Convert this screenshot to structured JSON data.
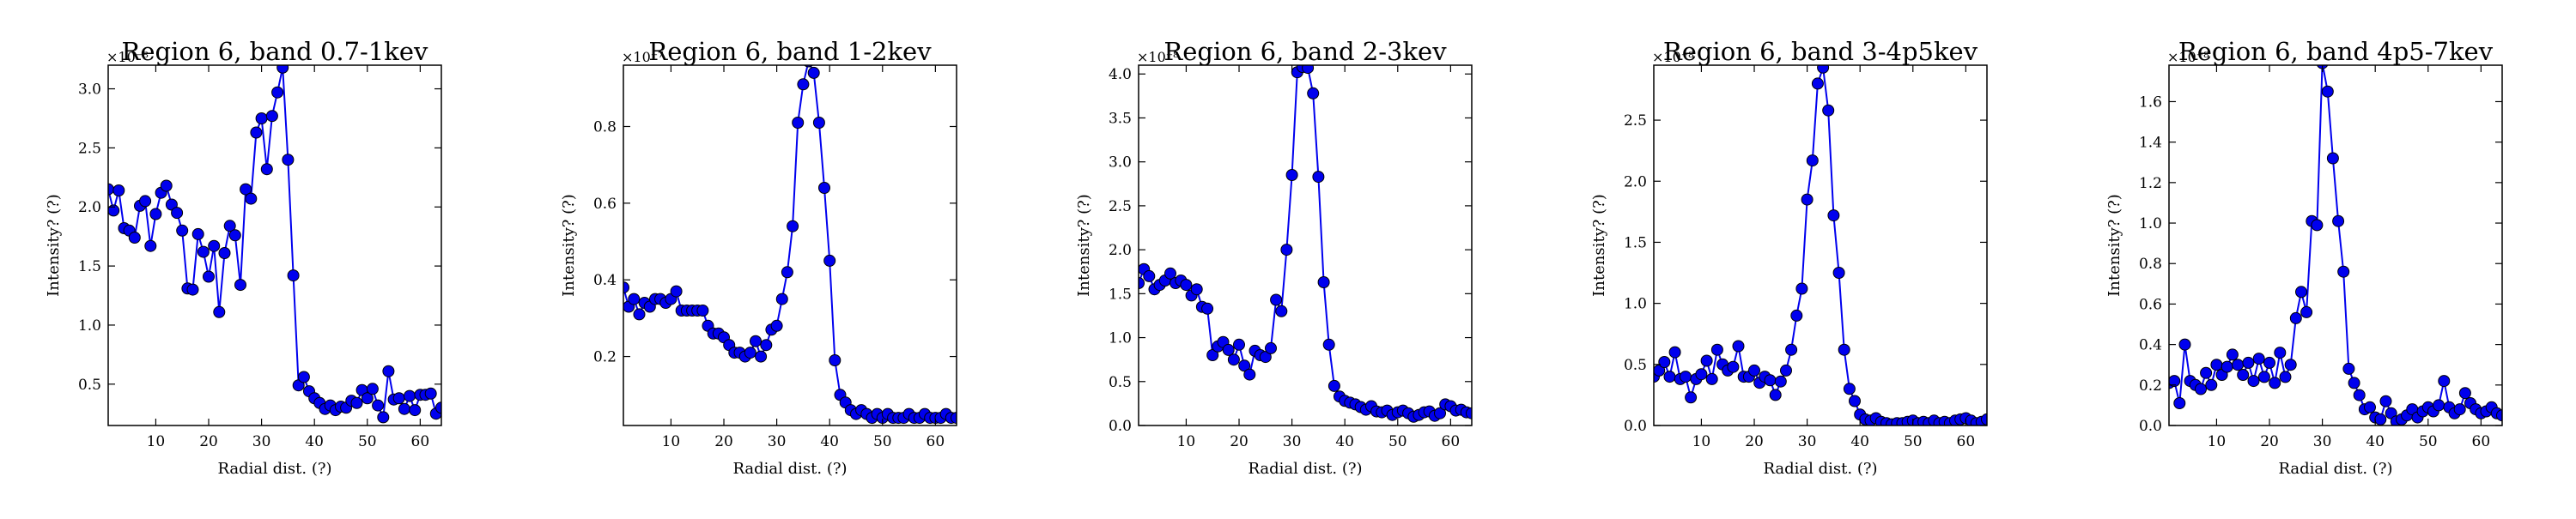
{
  "chart_data": [
    {
      "type": "line",
      "title": "Region 6, band 0.7-1kev",
      "xlabel": "Radial dist. (?)",
      "ylabel": "Intensity? (?)",
      "multiplier": "×10⁻⁸",
      "xlim": [
        1,
        64
      ],
      "ylim": [
        0.15,
        3.2
      ],
      "xticks": [
        "10",
        "20",
        "30",
        "40",
        "50",
        "60"
      ],
      "yticks": [
        "0.5",
        "1.0",
        "1.5",
        "2.0",
        "2.5",
        "3.0"
      ],
      "series": [
        {
          "color": "#0000ee",
          "x": [
            1,
            2,
            3,
            4,
            5,
            6,
            7,
            8,
            9,
            10,
            11,
            12,
            13,
            14,
            15,
            16,
            17,
            18,
            19,
            20,
            21,
            22,
            23,
            24,
            25,
            26,
            27,
            28,
            29,
            30,
            31,
            32,
            33,
            34,
            35,
            36,
            37,
            38,
            39,
            40,
            41,
            42,
            43,
            44,
            45,
            46,
            47,
            48,
            49,
            50,
            51,
            52,
            53,
            54,
            55,
            56,
            57,
            58,
            59,
            60,
            61,
            62,
            63,
            64
          ],
          "values": [
            2.15,
            1.97,
            2.14,
            1.82,
            1.8,
            1.74,
            2.01,
            2.05,
            1.67,
            1.94,
            2.12,
            2.18,
            2.02,
            1.95,
            1.8,
            1.31,
            1.3,
            1.77,
            1.62,
            1.41,
            1.67,
            1.11,
            1.61,
            1.84,
            1.76,
            1.34,
            2.15,
            2.07,
            2.63,
            2.75,
            2.32,
            2.77,
            2.97,
            3.18,
            2.4,
            1.42,
            0.49,
            0.56,
            0.44,
            0.38,
            0.34,
            0.29,
            0.32,
            0.28,
            0.31,
            0.3,
            0.36,
            0.34,
            0.45,
            0.38,
            0.46,
            0.32,
            0.22,
            0.61,
            0.37,
            0.38,
            0.29,
            0.4,
            0.28,
            0.41,
            0.41,
            0.42,
            0.25,
            0.3
          ]
        }
      ]
    },
    {
      "type": "line",
      "title": "Region 6, band 1-2kev",
      "xlabel": "Radial dist. (?)",
      "ylabel": "Intensity? (?)",
      "multiplier": "×10⁻⁷",
      "xlim": [
        1,
        64
      ],
      "ylim": [
        0.02,
        0.96
      ],
      "xticks": [
        "10",
        "20",
        "30",
        "40",
        "50",
        "60"
      ],
      "yticks": [
        "0.2",
        "0.4",
        "0.6",
        "0.8"
      ],
      "series": [
        {
          "color": "#0000ee",
          "x": [
            1,
            2,
            3,
            4,
            5,
            6,
            7,
            8,
            9,
            10,
            11,
            12,
            13,
            14,
            15,
            16,
            17,
            18,
            19,
            20,
            21,
            22,
            23,
            24,
            25,
            26,
            27,
            28,
            29,
            30,
            31,
            32,
            33,
            34,
            35,
            36,
            37,
            38,
            39,
            40,
            41,
            42,
            43,
            44,
            45,
            46,
            47,
            48,
            49,
            50,
            51,
            52,
            53,
            54,
            55,
            56,
            57,
            58,
            59,
            60,
            61,
            62,
            63,
            64
          ],
          "values": [
            0.38,
            0.33,
            0.35,
            0.31,
            0.34,
            0.33,
            0.35,
            0.35,
            0.34,
            0.35,
            0.37,
            0.32,
            0.32,
            0.32,
            0.32,
            0.32,
            0.28,
            0.26,
            0.26,
            0.25,
            0.23,
            0.21,
            0.21,
            0.2,
            0.21,
            0.24,
            0.2,
            0.23,
            0.27,
            0.28,
            0.35,
            0.42,
            0.54,
            0.81,
            0.91,
            0.97,
            0.94,
            0.81,
            0.64,
            0.45,
            0.19,
            0.1,
            0.08,
            0.06,
            0.05,
            0.06,
            0.05,
            0.04,
            0.05,
            0.04,
            0.05,
            0.04,
            0.04,
            0.04,
            0.05,
            0.04,
            0.04,
            0.05,
            0.04,
            0.04,
            0.04,
            0.05,
            0.04,
            0.04
          ]
        }
      ]
    },
    {
      "type": "line",
      "title": "Region 6, band 2-3kev",
      "xlabel": "Radial dist. (?)",
      "ylabel": "Intensity? (?)",
      "multiplier": "×10⁻⁸",
      "xlim": [
        1,
        64
      ],
      "ylim": [
        0.0,
        4.1
      ],
      "xticks": [
        "10",
        "20",
        "30",
        "40",
        "50",
        "60"
      ],
      "yticks": [
        "0.0",
        "0.5",
        "1.0",
        "1.5",
        "2.0",
        "2.5",
        "3.0",
        "3.5",
        "4.0"
      ],
      "series": [
        {
          "color": "#0000ee",
          "x": [
            1,
            2,
            3,
            4,
            5,
            6,
            7,
            8,
            9,
            10,
            11,
            12,
            13,
            14,
            15,
            16,
            17,
            18,
            19,
            20,
            21,
            22,
            23,
            24,
            25,
            26,
            27,
            28,
            29,
            30,
            31,
            32,
            33,
            34,
            35,
            36,
            37,
            38,
            39,
            40,
            41,
            42,
            43,
            44,
            45,
            46,
            47,
            48,
            49,
            50,
            51,
            52,
            53,
            54,
            55,
            56,
            57,
            58,
            59,
            60,
            61,
            62,
            63,
            64
          ],
          "values": [
            1.62,
            1.78,
            1.7,
            1.55,
            1.6,
            1.65,
            1.73,
            1.62,
            1.65,
            1.6,
            1.48,
            1.55,
            1.35,
            1.33,
            0.8,
            0.9,
            0.95,
            0.86,
            0.75,
            0.92,
            0.68,
            0.58,
            0.85,
            0.8,
            0.78,
            0.88,
            1.43,
            1.3,
            2.0,
            2.85,
            4.02,
            4.08,
            4.07,
            3.78,
            2.83,
            1.63,
            0.92,
            0.45,
            0.33,
            0.28,
            0.26,
            0.24,
            0.21,
            0.18,
            0.22,
            0.16,
            0.15,
            0.17,
            0.12,
            0.15,
            0.17,
            0.14,
            0.1,
            0.12,
            0.15,
            0.16,
            0.11,
            0.14,
            0.24,
            0.22,
            0.17,
            0.18,
            0.15,
            0.14
          ]
        }
      ]
    },
    {
      "type": "line",
      "title": "Region 6, band 3-4p5kev",
      "xlabel": "Radial dist. (?)",
      "ylabel": "Intensity? (?)",
      "multiplier": "×10⁻⁸",
      "xlim": [
        1,
        64
      ],
      "ylim": [
        0.0,
        2.95
      ],
      "xticks": [
        "10",
        "20",
        "30",
        "40",
        "50",
        "60"
      ],
      "yticks": [
        "0.0",
        "0.5",
        "1.0",
        "1.5",
        "2.0",
        "2.5"
      ],
      "series": [
        {
          "color": "#0000ee",
          "x": [
            1,
            2,
            3,
            4,
            5,
            6,
            7,
            8,
            9,
            10,
            11,
            12,
            13,
            14,
            15,
            16,
            17,
            18,
            19,
            20,
            21,
            22,
            23,
            24,
            25,
            26,
            27,
            28,
            29,
            30,
            31,
            32,
            33,
            34,
            35,
            36,
            37,
            38,
            39,
            40,
            41,
            42,
            43,
            44,
            45,
            46,
            47,
            48,
            49,
            50,
            51,
            52,
            53,
            54,
            55,
            56,
            57,
            58,
            59,
            60,
            61,
            62,
            63,
            64
          ],
          "values": [
            0.4,
            0.45,
            0.52,
            0.4,
            0.6,
            0.38,
            0.4,
            0.23,
            0.38,
            0.42,
            0.53,
            0.38,
            0.62,
            0.5,
            0.45,
            0.48,
            0.65,
            0.4,
            0.4,
            0.45,
            0.35,
            0.4,
            0.37,
            0.25,
            0.36,
            0.45,
            0.62,
            0.9,
            1.12,
            1.85,
            2.17,
            2.8,
            2.93,
            2.58,
            1.72,
            1.25,
            0.62,
            0.3,
            0.2,
            0.09,
            0.05,
            0.04,
            0.06,
            0.03,
            0.02,
            0.01,
            0.02,
            0.02,
            0.03,
            0.04,
            0.02,
            0.03,
            0.02,
            0.04,
            0.02,
            0.03,
            0.02,
            0.04,
            0.05,
            0.06,
            0.04,
            0.02,
            0.03,
            0.05
          ]
        }
      ]
    },
    {
      "type": "line",
      "title": "Region 6, band 4p5-7kev",
      "xlabel": "Radial dist. (?)",
      "ylabel": "Intensity? (?)",
      "multiplier": "×10⁻⁸",
      "xlim": [
        1,
        64
      ],
      "ylim": [
        0.0,
        1.78
      ],
      "xticks": [
        "10",
        "20",
        "30",
        "40",
        "50",
        "60"
      ],
      "yticks": [
        "0.0",
        "0.2",
        "0.4",
        "0.6",
        "0.8",
        "1.0",
        "1.2",
        "1.4",
        "1.6"
      ],
      "series": [
        {
          "color": "#0000ee",
          "x": [
            1,
            2,
            3,
            4,
            5,
            6,
            7,
            8,
            9,
            10,
            11,
            12,
            13,
            14,
            15,
            16,
            17,
            18,
            19,
            20,
            21,
            22,
            23,
            24,
            25,
            26,
            27,
            28,
            29,
            30,
            31,
            32,
            33,
            34,
            35,
            36,
            37,
            38,
            39,
            40,
            41,
            42,
            43,
            44,
            45,
            46,
            47,
            48,
            49,
            50,
            51,
            52,
            53,
            54,
            55,
            56,
            57,
            58,
            59,
            60,
            61,
            62,
            63,
            64
          ],
          "values": [
            0.21,
            0.22,
            0.11,
            0.4,
            0.22,
            0.2,
            0.18,
            0.26,
            0.2,
            0.3,
            0.25,
            0.29,
            0.35,
            0.3,
            0.25,
            0.31,
            0.22,
            0.33,
            0.24,
            0.31,
            0.21,
            0.36,
            0.24,
            0.3,
            0.53,
            0.66,
            0.56,
            1.01,
            0.99,
            1.79,
            1.65,
            1.32,
            1.01,
            0.76,
            0.28,
            0.21,
            0.15,
            0.08,
            0.09,
            0.04,
            0.03,
            0.12,
            0.06,
            0.02,
            0.03,
            0.05,
            0.08,
            0.04,
            0.07,
            0.09,
            0.07,
            0.1,
            0.22,
            0.09,
            0.06,
            0.08,
            0.16,
            0.11,
            0.08,
            0.06,
            0.07,
            0.09,
            0.06,
            0.05
          ]
        }
      ]
    }
  ]
}
